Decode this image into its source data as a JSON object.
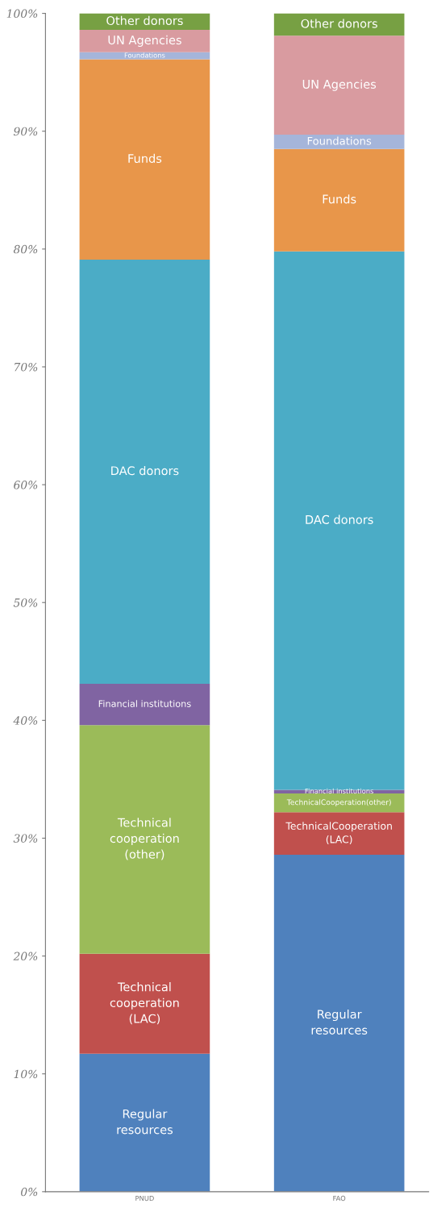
{
  "chart_data": {
    "type": "bar",
    "stacked": true,
    "categories": [
      "PNUD",
      "FAO"
    ],
    "ylim": [
      0,
      100
    ],
    "yticks": [
      {
        "value": 0,
        "label": "0%"
      },
      {
        "value": 10,
        "label": "10%"
      },
      {
        "value": 20,
        "label": "20%"
      },
      {
        "value": 30,
        "label": "30%"
      },
      {
        "value": 40,
        "label": "40%"
      },
      {
        "value": 50,
        "label": "50%"
      },
      {
        "value": 60,
        "label": "60%"
      },
      {
        "value": 70,
        "label": "70%"
      },
      {
        "value": 80,
        "label": "80%"
      },
      {
        "value": 90,
        "label": "90%"
      },
      {
        "value": 100,
        "label": "100%"
      }
    ],
    "grid": false,
    "legend": false,
    "series": [
      {
        "color": "#4f81bd",
        "values": [
          11.7,
          28.6
        ],
        "value_labels": [
          "Regular\nresources",
          "Regular\nresources"
        ]
      },
      {
        "color": "#c0504d",
        "values": [
          8.5,
          3.6
        ],
        "value_labels": [
          "Technical\ncooperation\n(LAC)",
          "TechnicalCooperation\n(LAC)"
        ]
      },
      {
        "color": "#9bbb59",
        "values": [
          19.4,
          1.6
        ],
        "value_labels": [
          "Technical\ncooperation\n(other)",
          "TechnicalCooperation(other)"
        ]
      },
      {
        "color": "#8064a2",
        "values": [
          3.5,
          0.3
        ],
        "value_labels": [
          "Financial institutions",
          "Financial institutions"
        ]
      },
      {
        "color": "#4bacc6",
        "values": [
          36.0,
          45.7
        ],
        "value_labels": [
          "DAC donors",
          "DAC donors"
        ]
      },
      {
        "color": "#e8964a",
        "values": [
          17.0,
          8.7
        ],
        "value_labels": [
          "Funds",
          "Funds"
        ]
      },
      {
        "color": "#a5b5da",
        "values": [
          0.6,
          1.2
        ],
        "value_labels": [
          "Foundations",
          "Foundations"
        ]
      },
      {
        "color": "#d99ba0",
        "values": [
          1.9,
          8.4
        ],
        "value_labels": [
          "UN Agencies",
          "UN Agencies"
        ]
      },
      {
        "color": "#77a043",
        "values": [
          1.4,
          1.9
        ],
        "value_labels": [
          "Other donors",
          "Other donors"
        ]
      }
    ]
  }
}
